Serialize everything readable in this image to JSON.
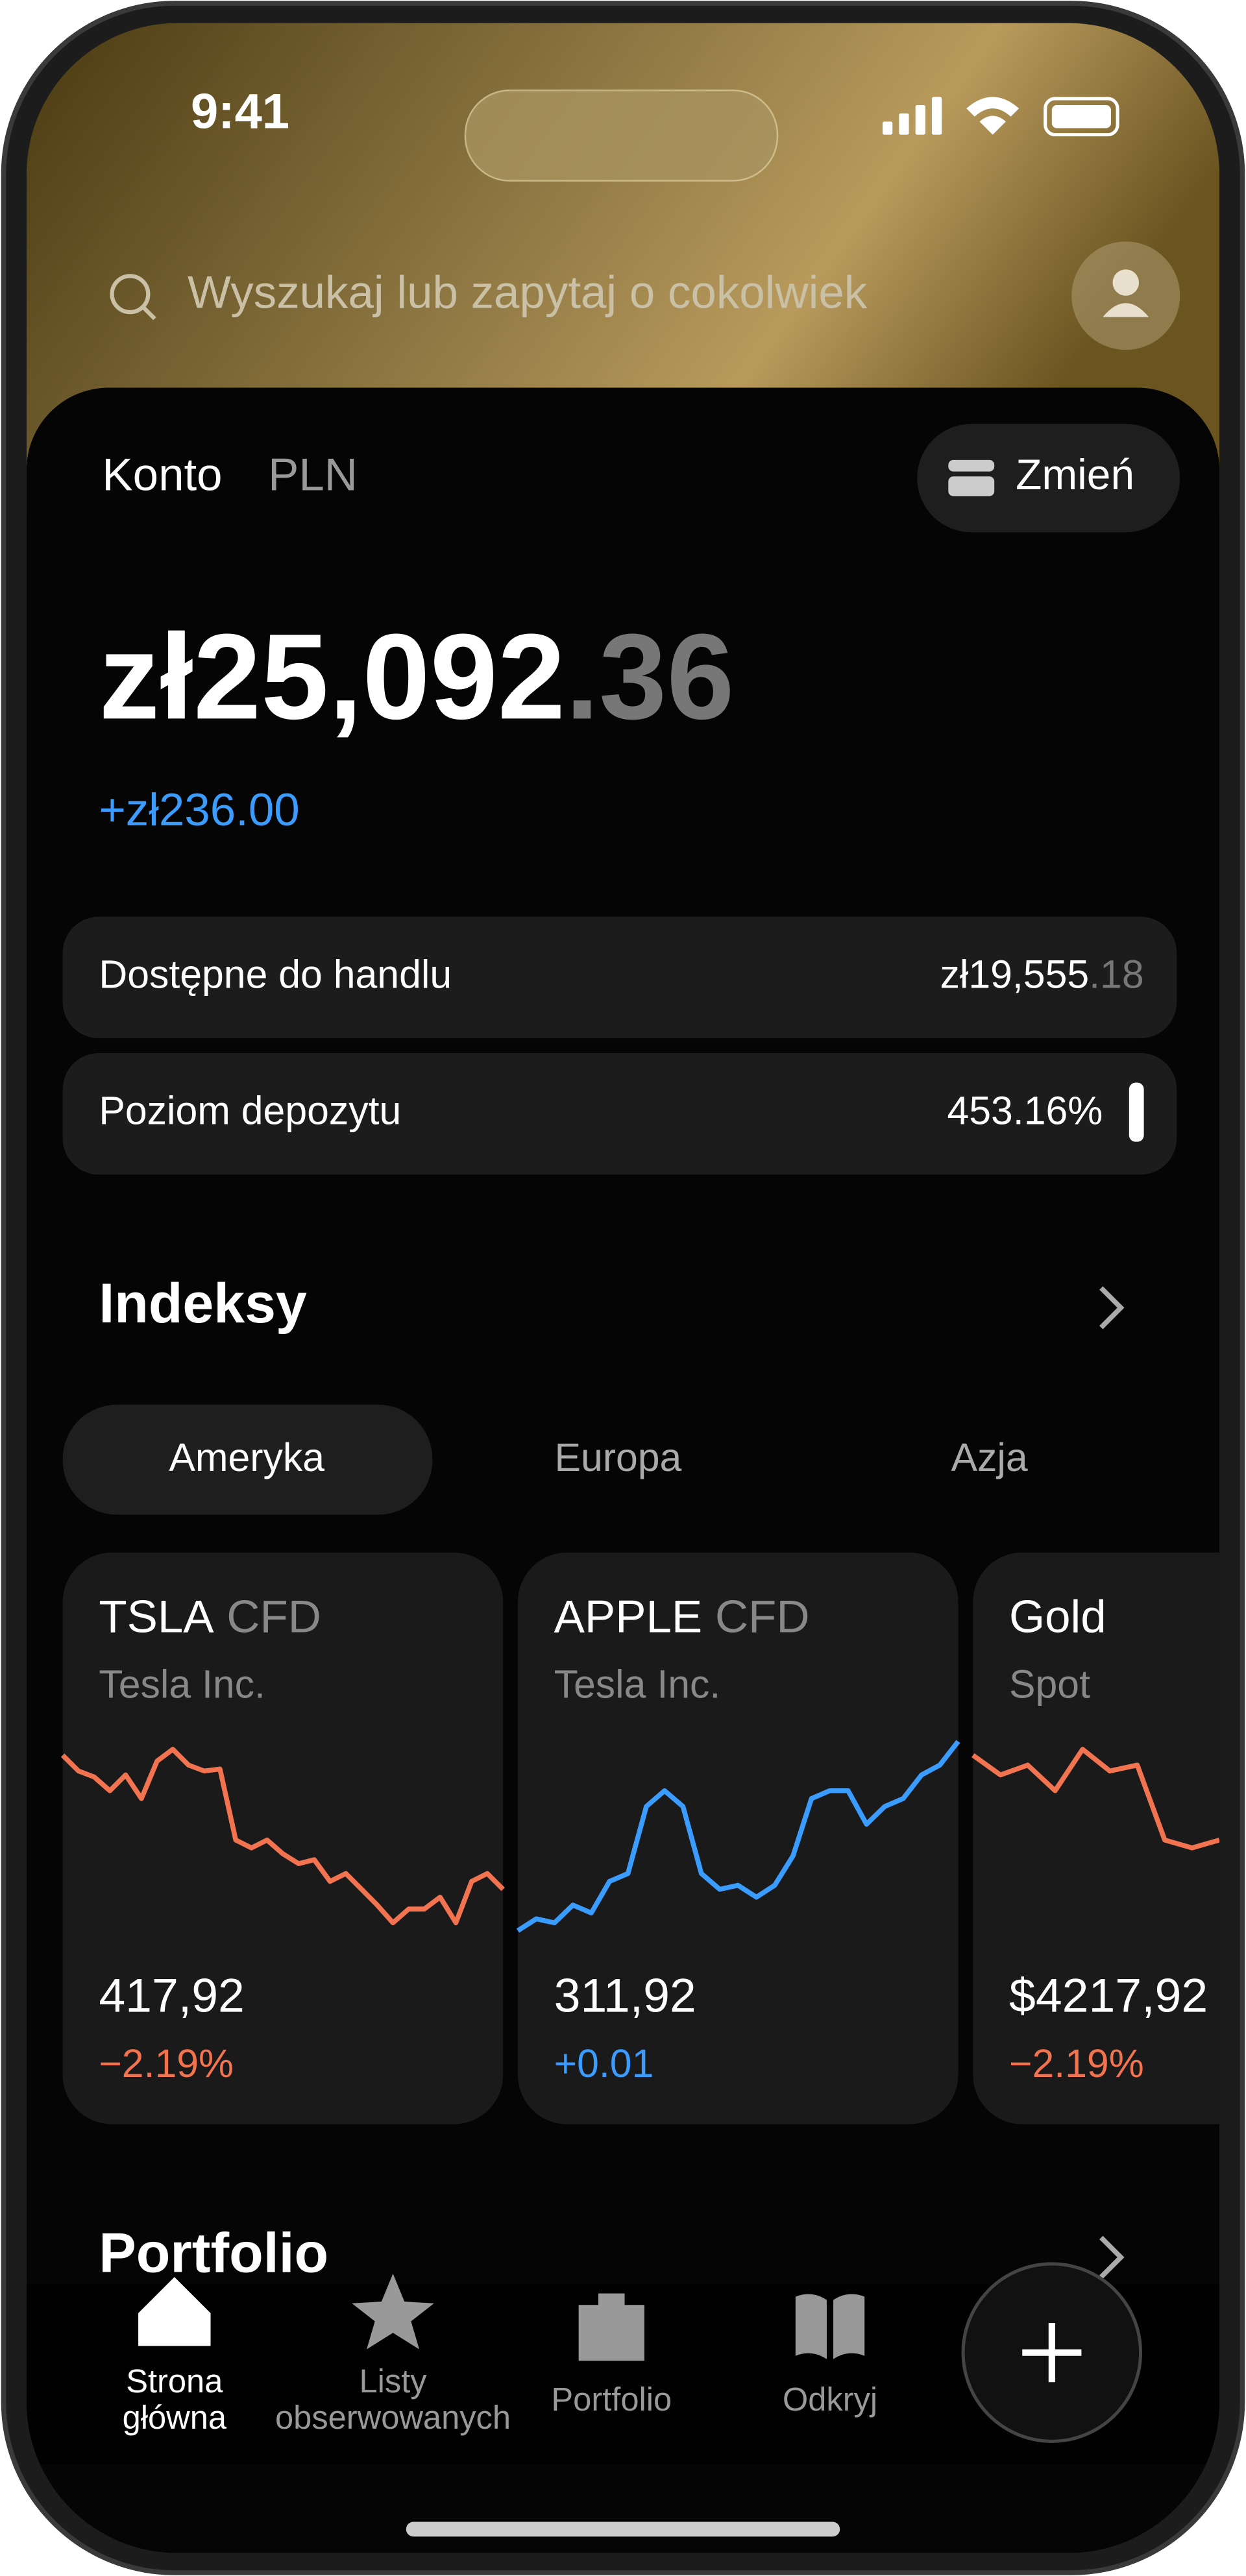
{
  "status_bar": {
    "time": "9:41"
  },
  "search": {
    "placeholder": "Wyszukaj lub zapytaj o cokolwiek"
  },
  "account": {
    "label": "Konto",
    "currency": "PLN",
    "switch_button": "Zmień",
    "balance_main": "zł25,092",
    "balance_decimals": ".36",
    "change": "+zł236.00",
    "rows": [
      {
        "label": "Dostępne do handlu",
        "value_main": "zł19,555",
        "value_decimals": ".18"
      },
      {
        "label": "Poziom depozytu",
        "value_main": "453.16%"
      }
    ]
  },
  "indices": {
    "title": "Indeksy",
    "tabs": [
      "Ameryka",
      "Europa",
      "Azja"
    ],
    "cards": [
      {
        "symbol": "TSLA",
        "kind": "CFD",
        "name": "Tesla Inc.",
        "price": "417,92",
        "change": "−2.19%",
        "trend": "down",
        "sparkline": [
          93,
          85,
          82,
          75,
          83,
          71,
          90,
          96,
          88,
          85,
          86,
          50,
          46,
          50,
          43,
          38,
          40,
          29,
          33,
          25,
          17,
          8,
          15,
          15,
          21,
          8,
          29,
          33,
          25
        ]
      },
      {
        "symbol": "APPLE",
        "kind": "CFD",
        "name": "Tesla Inc.",
        "price": "311,92",
        "change": "+0.01",
        "trend": "up",
        "sparkline": [
          4,
          10,
          8,
          17,
          13,
          29,
          33,
          67,
          75,
          67,
          33,
          25,
          27,
          21,
          27,
          42,
          71,
          75,
          75,
          58,
          67,
          71,
          83,
          88,
          100
        ]
      },
      {
        "symbol": "Gold",
        "kind": "",
        "name": "Spot",
        "price": "$4217,92",
        "change": "−2.19%",
        "trend": "down",
        "sparkline": [
          93,
          83,
          88,
          75,
          96,
          85,
          88,
          50,
          46,
          50
        ]
      }
    ]
  },
  "portfolio": {
    "title": "Portfolio"
  },
  "nav": [
    {
      "lines": [
        "Strona",
        "główna"
      ]
    },
    {
      "lines": [
        "Listy",
        "obserwowanych"
      ]
    },
    {
      "lines": [
        "Portfolio"
      ]
    },
    {
      "lines": [
        "Odkryj"
      ]
    }
  ]
}
